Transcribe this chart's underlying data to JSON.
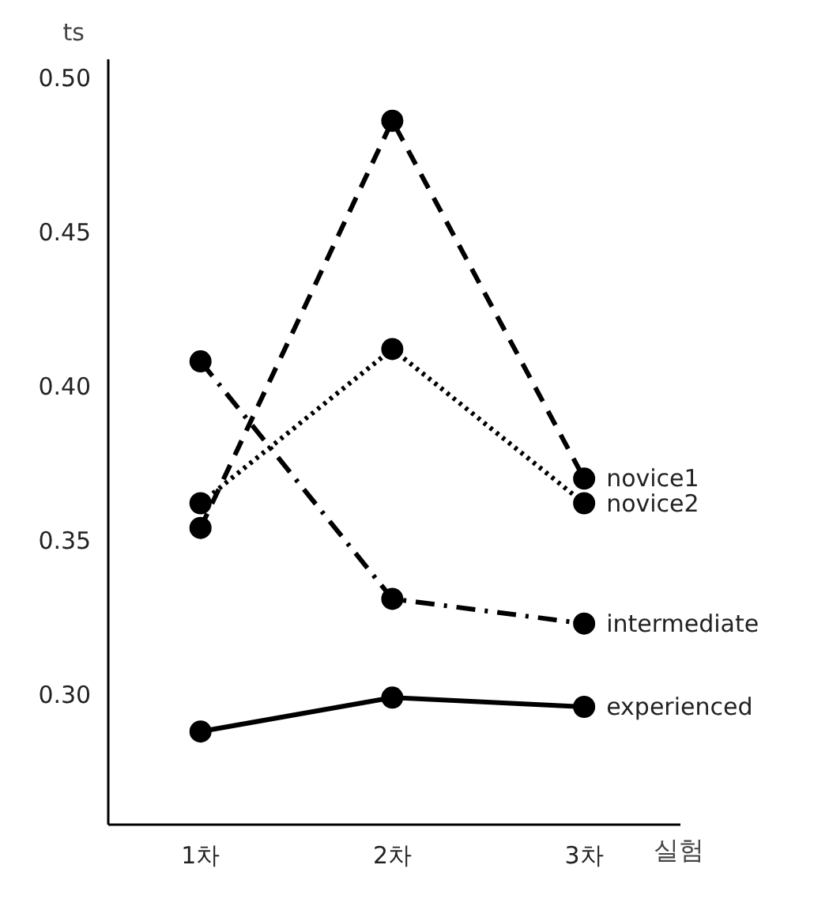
{
  "chart_data": {
    "type": "line",
    "ylabel": "ts",
    "xlabel": "실험",
    "categories": [
      "1차",
      "2차",
      "3차"
    ],
    "ylim": [
      0.258,
      0.506
    ],
    "yticks": [
      {
        "value": 0.3,
        "label": "0.30"
      },
      0.35,
      {
        "value": 0.4,
        "label": "0.40"
      },
      0.45,
      {
        "value": 0.5,
        "label": "0.50"
      }
    ],
    "grid": false,
    "marker": "circle",
    "series": [
      {
        "name": "novice1",
        "color": "#000000",
        "line_style": "dashed",
        "values": [
          0.354,
          0.486,
          0.37
        ]
      },
      {
        "name": "novice2",
        "color": "#000000",
        "line_style": "dotted",
        "values": [
          0.362,
          0.412,
          0.362
        ]
      },
      {
        "name": "intermediate",
        "color": "#000000",
        "line_style": "dashdot",
        "values": [
          0.408,
          0.331,
          0.323
        ]
      },
      {
        "name": "experienced",
        "color": "#000000",
        "line_style": "solid",
        "values": [
          0.288,
          0.299,
          0.296
        ]
      }
    ]
  }
}
